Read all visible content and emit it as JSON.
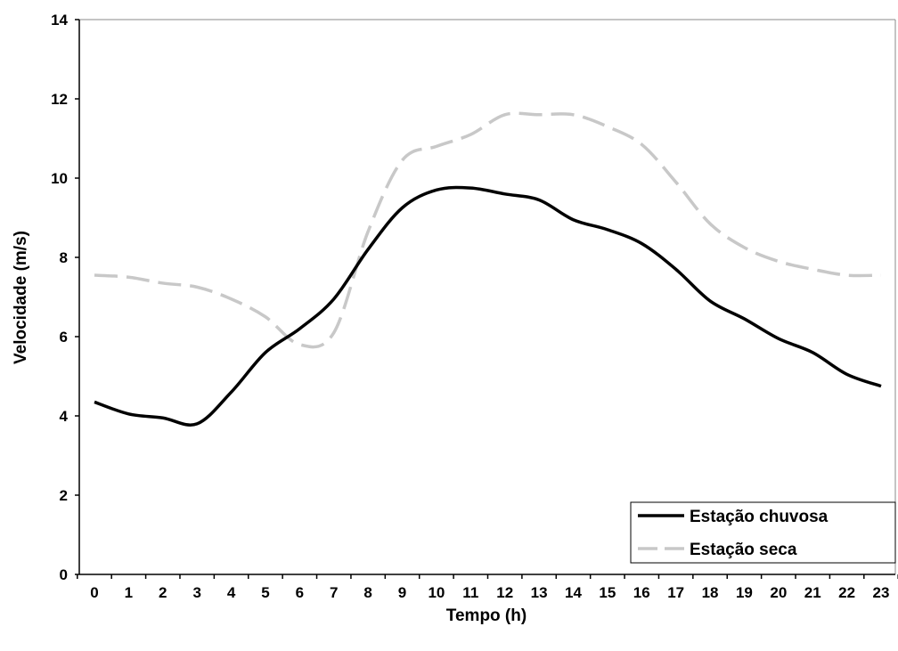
{
  "chart_data": {
    "type": "line",
    "title": "",
    "xlabel": "Tempo (h)",
    "ylabel": "Velocidade (m/s)",
    "x": [
      0,
      1,
      2,
      3,
      4,
      5,
      6,
      7,
      8,
      9,
      10,
      11,
      12,
      13,
      14,
      15,
      16,
      17,
      18,
      19,
      20,
      21,
      22,
      23
    ],
    "xlim": [
      0,
      23
    ],
    "ylim": [
      0,
      14
    ],
    "yticks": [
      0,
      2,
      4,
      6,
      8,
      10,
      12,
      14
    ],
    "grid": false,
    "legend_position": "bottom-right",
    "series": [
      {
        "name": "Estação chuvosa",
        "color": "#000000",
        "dash": "solid",
        "values": [
          4.35,
          4.05,
          3.95,
          3.8,
          4.6,
          5.6,
          6.2,
          6.95,
          8.2,
          9.25,
          9.7,
          9.75,
          9.6,
          9.45,
          8.95,
          8.7,
          8.35,
          7.7,
          6.9,
          6.45,
          5.95,
          5.6,
          5.05,
          4.75
        ]
      },
      {
        "name": "Estação seca",
        "color": "#c8c8c8",
        "dash": "dashed",
        "values": [
          7.55,
          7.5,
          7.35,
          7.25,
          6.95,
          6.5,
          5.8,
          6.1,
          8.65,
          10.45,
          10.8,
          11.1,
          11.6,
          11.6,
          11.6,
          11.3,
          10.85,
          9.9,
          8.85,
          8.25,
          7.9,
          7.7,
          7.55,
          7.55
        ]
      }
    ]
  }
}
